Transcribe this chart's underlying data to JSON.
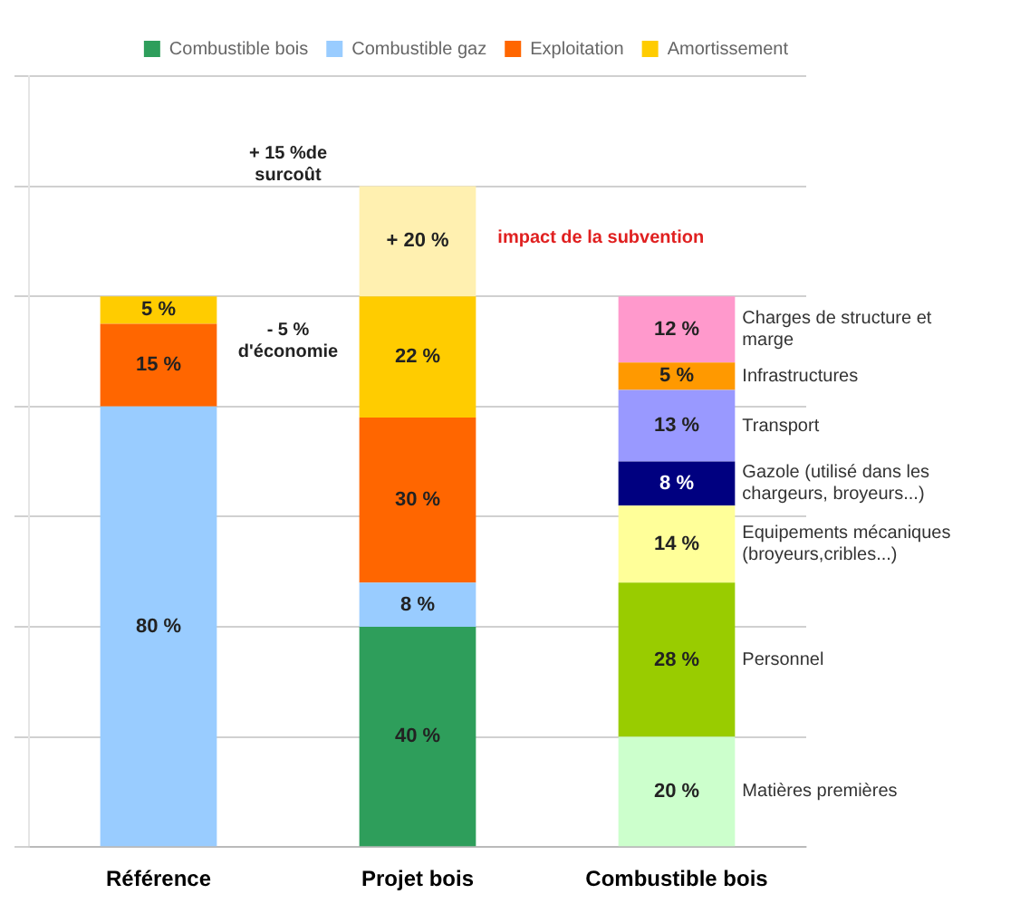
{
  "chart_data": {
    "type": "bar",
    "stacked": true,
    "categories": [
      "Référence",
      "Projet bois",
      "Combustible bois"
    ],
    "series": [
      {
        "name": "Combustible bois",
        "color": "#2e9e5b",
        "values": [
          null,
          40,
          null
        ],
        "value_labels": [
          null,
          "40 %",
          null
        ]
      },
      {
        "name": "Combustible gaz",
        "color": "#99ccff",
        "values": [
          80,
          8,
          null
        ],
        "value_labels": [
          "80 %",
          "8 %",
          null
        ]
      },
      {
        "name": "Exploitation",
        "color": "#ff6600",
        "values": [
          15,
          30,
          null
        ],
        "value_labels": [
          "15 %",
          "30 %",
          null
        ]
      },
      {
        "name": "Amortissement",
        "color": "#ffcc00",
        "values": [
          5,
          22,
          null
        ],
        "value_labels": [
          "5 %",
          "22 %",
          null
        ]
      },
      {
        "color": "#fff0b0",
        "values": [
          null,
          20,
          null
        ],
        "value_labels": [
          null,
          "+ 20 %",
          null
        ]
      },
      {
        "name": "Matières premières",
        "color": "#ccffcc",
        "values": [
          null,
          null,
          20
        ],
        "value_labels": [
          null,
          null,
          "20 %"
        ]
      },
      {
        "name": "Personnel",
        "color": "#99cc00",
        "values": [
          null,
          null,
          28
        ],
        "value_labels": [
          null,
          null,
          "28 %"
        ]
      },
      {
        "name": "Equipements mécaniques (broyeurs,cribles...)",
        "color": "#ffff99",
        "values": [
          null,
          null,
          14
        ],
        "value_labels": [
          null,
          null,
          "14 %"
        ]
      },
      {
        "name": "Gazole (utilisé dans les chargeurs, broyeurs...)",
        "color": "#000080",
        "values": [
          null,
          null,
          8
        ],
        "value_labels": [
          null,
          null,
          "8 %"
        ]
      },
      {
        "name": "Transport",
        "color": "#9999ff",
        "values": [
          null,
          null,
          13
        ],
        "value_labels": [
          null,
          null,
          "13 %"
        ]
      },
      {
        "name": "Infrastructures",
        "color": "#ff9900",
        "values": [
          null,
          null,
          5
        ],
        "value_labels": [
          null,
          null,
          "5 %"
        ]
      },
      {
        "name": "Charges de structure et marge",
        "color": "#ff99cc",
        "values": [
          null,
          null,
          12
        ],
        "value_labels": [
          null,
          null,
          "12 %"
        ]
      }
    ],
    "ylim": [
      0,
      140
    ],
    "yticks": [
      {
        "value": 0,
        "label": null
      },
      {
        "value": 20,
        "label": null
      },
      {
        "value": 40,
        "label": null
      },
      {
        "value": 60,
        "label": null
      },
      {
        "value": 80,
        "label": null
      },
      {
        "value": 100,
        "label": null
      },
      {
        "value": 120,
        "label": null
      },
      {
        "value": 140,
        "label": null
      }
    ],
    "grid": "y",
    "legend": "top right",
    "tick_labels": "x",
    "annotations": [
      "+ 15 %de surcoût",
      "- 5 % d'économie",
      "impact de la subvention"
    ]
  }
}
